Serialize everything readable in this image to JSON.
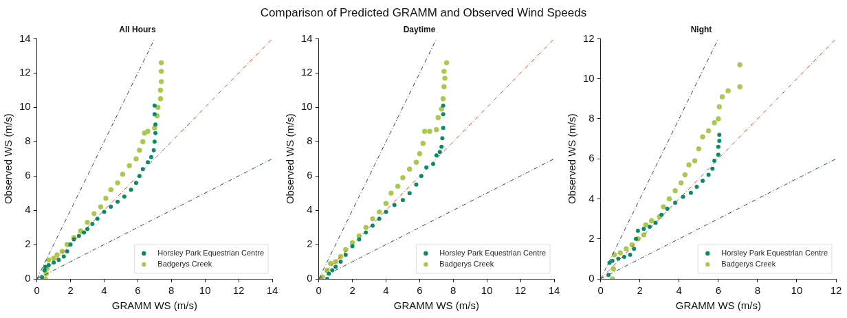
{
  "chart_data": [
    {
      "type": "scatter",
      "title": "All Hours",
      "xlabel": "GRAMM WS (m/s)",
      "ylabel": "Observed WS (m/s)",
      "annotations": [
        "Comparison of Predicted GRAMM and Observed Wind Speeds"
      ],
      "xlim": [
        0,
        14
      ],
      "ylim": [
        0,
        14
      ],
      "xticks": [
        0,
        2,
        4,
        6,
        8,
        10,
        12,
        14
      ],
      "yticks": [
        0,
        2,
        4,
        6,
        8,
        10,
        12,
        14
      ],
      "grid": false,
      "legend": "bottom right",
      "marker": "circle",
      "series": [
        {
          "type": "line",
          "marker": "none",
          "color": "#264d4d",
          "line_style": "dashed",
          "x": [
            0,
            7
          ],
          "values": [
            0,
            14
          ]
        },
        {
          "type": "line",
          "marker": "none",
          "color": "#e8442a",
          "line_style": "dashed",
          "x": [
            0,
            14
          ],
          "values": [
            0,
            14
          ]
        },
        {
          "type": "line",
          "marker": "none",
          "color": "#264d4d",
          "line_style": "dashed",
          "x": [
            0,
            14
          ],
          "values": [
            0,
            7
          ]
        },
        {
          "name": "Horsley Park Equestrian Centre",
          "color": "#0b8a68",
          "x": [
            0.3,
            0.45,
            0.5,
            0.7,
            1.0,
            1.3,
            1.6,
            1.8,
            2.0,
            2.2,
            2.5,
            2.8,
            3.0,
            3.3,
            3.6,
            4.0,
            4.4,
            4.8,
            5.2,
            5.6,
            5.9,
            6.1,
            6.3,
            6.6,
            6.8,
            6.95,
            7.0,
            7.05,
            7.05,
            7.0,
            7.0
          ],
          "values": [
            0.1,
            0.5,
            0.7,
            0.8,
            0.95,
            1.1,
            1.3,
            1.6,
            2.0,
            2.3,
            2.5,
            2.7,
            2.9,
            3.2,
            3.5,
            3.9,
            4.2,
            4.5,
            4.8,
            5.2,
            5.6,
            6.0,
            6.4,
            6.8,
            7.1,
            7.5,
            8.0,
            8.5,
            9.0,
            9.6,
            10.1
          ]
        },
        {
          "name": "Badgerys Creek",
          "color": "#a8c94c",
          "x": [
            0.5,
            0.55,
            0.6,
            0.7,
            1.0,
            1.2,
            1.5,
            1.8,
            2.2,
            2.6,
            3.0,
            3.4,
            3.8,
            4.1,
            4.4,
            4.8,
            5.1,
            5.5,
            5.9,
            6.1,
            6.3,
            6.4,
            6.6,
            7.0,
            7.15,
            7.2,
            7.35,
            7.35,
            7.4,
            7.4,
            7.4
          ],
          "values": [
            0.0,
            0.3,
            0.6,
            1.1,
            1.2,
            1.4,
            1.6,
            2.0,
            2.4,
            2.8,
            3.3,
            3.8,
            4.2,
            4.7,
            5.2,
            5.6,
            6.1,
            6.6,
            7.0,
            7.5,
            8.0,
            8.5,
            8.6,
            8.8,
            9.5,
            10.0,
            10.5,
            11.0,
            11.5,
            12.1,
            12.6
          ]
        }
      ]
    },
    {
      "type": "scatter",
      "title": "Daytime",
      "xlabel": "GRAMM WS (m/s)",
      "ylabel": "Observed WS (m/s)",
      "xlim": [
        0,
        14
      ],
      "ylim": [
        0,
        14
      ],
      "xticks": [
        0,
        2,
        4,
        6,
        8,
        10,
        12,
        14
      ],
      "yticks": [
        0,
        2,
        4,
        6,
        8,
        10,
        12,
        14
      ],
      "grid": false,
      "legend": "bottom right",
      "marker": "circle",
      "series": [
        {
          "type": "line",
          "marker": "none",
          "color": "#264d4d",
          "line_style": "dashed",
          "x": [
            0,
            7
          ],
          "values": [
            0,
            14
          ]
        },
        {
          "type": "line",
          "marker": "none",
          "color": "#e8442a",
          "line_style": "dashed",
          "x": [
            0,
            14
          ],
          "values": [
            0,
            14
          ]
        },
        {
          "type": "line",
          "marker": "none",
          "color": "#264d4d",
          "line_style": "dashed",
          "x": [
            0,
            14
          ],
          "values": [
            0,
            7
          ]
        },
        {
          "name": "Horsley Park Equestrian Centre",
          "color": "#0b8a68",
          "x": [
            0.5,
            0.6,
            0.8,
            1.0,
            1.3,
            1.6,
            2.0,
            2.4,
            2.8,
            3.2,
            3.6,
            4.0,
            4.5,
            5.0,
            5.4,
            5.8,
            6.1,
            6.4,
            6.8,
            7.0,
            7.2,
            7.3,
            7.35,
            7.4,
            7.4,
            7.4
          ],
          "values": [
            0,
            0.3,
            0.5,
            0.7,
            1.0,
            1.4,
            1.9,
            2.3,
            2.7,
            3.1,
            3.5,
            3.9,
            4.3,
            4.6,
            5.0,
            5.5,
            6.0,
            6.5,
            6.7,
            7.2,
            7.4,
            7.7,
            8.2,
            8.8,
            9.6,
            10.1
          ]
        },
        {
          "name": "Badgerys Creek",
          "color": "#a8c94c",
          "x": [
            0.2,
            0.5,
            0.7,
            1.0,
            1.3,
            1.6,
            2.0,
            2.4,
            2.8,
            3.2,
            3.6,
            4.0,
            4.3,
            4.7,
            5.0,
            5.4,
            5.8,
            6.0,
            6.2,
            6.3,
            6.6,
            7.0,
            7.1,
            7.3,
            7.4,
            7.45,
            7.5,
            7.45,
            7.6
          ],
          "values": [
            0.1,
            0.5,
            0.9,
            1.0,
            1.3,
            1.7,
            2.1,
            2.5,
            3.0,
            3.5,
            3.9,
            4.4,
            5.0,
            5.4,
            5.9,
            6.4,
            6.8,
            7.3,
            7.9,
            8.6,
            8.6,
            8.7,
            9.4,
            9.9,
            10.5,
            11.2,
            11.7,
            12.1,
            12.6
          ]
        }
      ]
    },
    {
      "type": "scatter",
      "title": "Night",
      "xlabel": "GRAMM WS (m/s)",
      "ylabel": "Observed WS (m/s)",
      "xlim": [
        0,
        12
      ],
      "ylim": [
        0,
        12
      ],
      "xticks": [
        0,
        2,
        4,
        6,
        8,
        10,
        12
      ],
      "yticks": [
        0,
        2,
        4,
        6,
        8,
        10,
        12
      ],
      "grid": false,
      "legend": "bottom right",
      "marker": "circle",
      "series": [
        {
          "type": "line",
          "marker": "none",
          "color": "#264d4d",
          "line_style": "dashed",
          "x": [
            0,
            6
          ],
          "values": [
            0,
            12
          ]
        },
        {
          "type": "line",
          "marker": "none",
          "color": "#e8442a",
          "line_style": "dashed",
          "x": [
            0,
            12
          ],
          "values": [
            0,
            12
          ]
        },
        {
          "type": "line",
          "marker": "none",
          "color": "#264d4d",
          "line_style": "dashed",
          "x": [
            0,
            12
          ],
          "values": [
            0,
            6
          ]
        },
        {
          "name": "Horsley Park Equestrian Centre",
          "color": "#0b8a68",
          "x": [
            0.4,
            0.45,
            0.6,
            0.9,
            1.2,
            1.5,
            1.7,
            1.8,
            1.9,
            2.2,
            2.5,
            2.8,
            3.1,
            3.4,
            3.8,
            4.2,
            4.6,
            4.9,
            5.2,
            5.5,
            5.7,
            5.8,
            6.0,
            6.0,
            6.05,
            6.05
          ],
          "values": [
            0.2,
            0.8,
            0.9,
            1.0,
            1.1,
            1.2,
            1.5,
            2.0,
            2.4,
            2.5,
            2.6,
            2.8,
            3.2,
            3.5,
            3.8,
            4.1,
            4.3,
            4.6,
            4.9,
            5.2,
            5.5,
            5.9,
            6.2,
            6.6,
            6.9,
            7.2
          ]
        },
        {
          "name": "Badgerys Creek",
          "color": "#a8c94c",
          "x": [
            0.6,
            0.65,
            0.7,
            1.0,
            1.3,
            1.6,
            1.9,
            2.2,
            2.3,
            2.6,
            3.0,
            3.2,
            3.5,
            3.8,
            4.1,
            4.3,
            4.5,
            4.8,
            5.0,
            5.2,
            5.5,
            5.8,
            6.0,
            6.05,
            6.2,
            6.5,
            7.1,
            7.1
          ],
          "values": [
            0,
            0.5,
            1.2,
            1.3,
            1.5,
            1.7,
            2.0,
            2.2,
            2.7,
            2.9,
            3.1,
            3.6,
            4.0,
            4.4,
            4.8,
            5.2,
            5.7,
            5.9,
            6.5,
            7.1,
            7.4,
            7.8,
            8.0,
            8.6,
            9.1,
            9.4,
            9.6,
            10.7
          ]
        }
      ]
    }
  ]
}
